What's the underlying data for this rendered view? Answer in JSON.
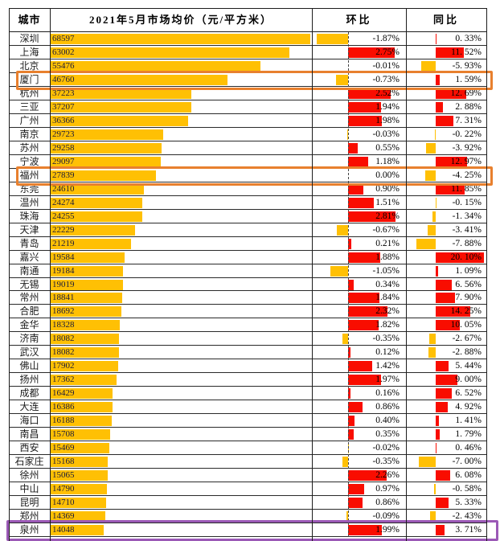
{
  "header": {
    "col_city": "城市",
    "col_price": "2021年5月市场均价（元/平方米）",
    "col_mom": "环比",
    "col_yoy": "同比"
  },
  "palette": {
    "bar_gold": "#FFC004",
    "bar_red": "#F90D00",
    "highlight_orange": "#E8802E",
    "highlight_purple": "#9B59B6",
    "grid": "#1c1c1c"
  },
  "chart_data": {
    "type": "table",
    "columns": [
      "城市",
      "2021年5月市场均价（元/平方米）",
      "环比",
      "同比"
    ],
    "bar_rules": {
      "price_bar_color": "gold",
      "positive_change_bar": "red, extends right of zero axis",
      "negative_change_bar": "gold, extends left of zero axis",
      "mom_zero_axis": "dashed vertical line in 环比 column"
    },
    "rows": [
      {
        "city": "深圳",
        "price": 68597,
        "mom": -1.87,
        "yoy": 0.33,
        "highlight": null
      },
      {
        "city": "上海",
        "price": 63002,
        "mom": 2.75,
        "yoy": 11.52,
        "highlight": null
      },
      {
        "city": "北京",
        "price": 55476,
        "mom": -0.01,
        "yoy": -5.93,
        "highlight": null
      },
      {
        "city": "厦门",
        "price": 46760,
        "mom": -0.73,
        "yoy": 1.59,
        "highlight": "orange"
      },
      {
        "city": "杭州",
        "price": 37223,
        "mom": 2.52,
        "yoy": 12.69,
        "highlight": null
      },
      {
        "city": "三亚",
        "price": 37207,
        "mom": 1.94,
        "yoy": 2.88,
        "highlight": null
      },
      {
        "city": "广州",
        "price": 36366,
        "mom": 1.98,
        "yoy": 7.31,
        "highlight": null
      },
      {
        "city": "南京",
        "price": 29723,
        "mom": -0.03,
        "yoy": -0.22,
        "highlight": null
      },
      {
        "city": "苏州",
        "price": 29258,
        "mom": 0.55,
        "yoy": -3.92,
        "highlight": null
      },
      {
        "city": "宁波",
        "price": 29097,
        "mom": 1.18,
        "yoy": 12.97,
        "highlight": null
      },
      {
        "city": "福州",
        "price": 27839,
        "mom": 0.0,
        "yoy": -4.25,
        "highlight": "orange"
      },
      {
        "city": "东莞",
        "price": 24610,
        "mom": 0.9,
        "yoy": 11.85,
        "highlight": null
      },
      {
        "city": "温州",
        "price": 24274,
        "mom": 1.51,
        "yoy": -0.15,
        "highlight": null
      },
      {
        "city": "珠海",
        "price": 24255,
        "mom": 2.81,
        "yoy": -1.34,
        "highlight": null
      },
      {
        "city": "天津",
        "price": 22229,
        "mom": -0.67,
        "yoy": -3.41,
        "highlight": null
      },
      {
        "city": "青岛",
        "price": 21219,
        "mom": 0.21,
        "yoy": -7.88,
        "highlight": null
      },
      {
        "city": "嘉兴",
        "price": 19584,
        "mom": 1.88,
        "yoy": 20.1,
        "highlight": null
      },
      {
        "city": "南通",
        "price": 19184,
        "mom": -1.05,
        "yoy": 1.09,
        "highlight": null
      },
      {
        "city": "无锡",
        "price": 19019,
        "mom": 0.34,
        "yoy": 6.56,
        "highlight": null
      },
      {
        "city": "常州",
        "price": 18841,
        "mom": 1.84,
        "yoy": 7.9,
        "highlight": null
      },
      {
        "city": "合肥",
        "price": 18692,
        "mom": 2.32,
        "yoy": 14.25,
        "highlight": null
      },
      {
        "city": "金华",
        "price": 18328,
        "mom": 1.82,
        "yoy": 10.05,
        "highlight": null
      },
      {
        "city": "济南",
        "price": 18082,
        "mom": -0.35,
        "yoy": -2.67,
        "highlight": null
      },
      {
        "city": "武汉",
        "price": 18082,
        "mom": 0.12,
        "yoy": -2.88,
        "highlight": null
      },
      {
        "city": "佛山",
        "price": 17902,
        "mom": 1.42,
        "yoy": 5.44,
        "highlight": null
      },
      {
        "city": "扬州",
        "price": 17362,
        "mom": 1.97,
        "yoy": 9.0,
        "highlight": null
      },
      {
        "city": "成都",
        "price": 16429,
        "mom": 0.16,
        "yoy": 6.52,
        "highlight": null
      },
      {
        "city": "大连",
        "price": 16386,
        "mom": 0.86,
        "yoy": 4.92,
        "highlight": null
      },
      {
        "city": "海口",
        "price": 16188,
        "mom": 0.4,
        "yoy": 1.41,
        "highlight": null
      },
      {
        "city": "南昌",
        "price": 15708,
        "mom": 0.35,
        "yoy": 1.79,
        "highlight": null
      },
      {
        "city": "西安",
        "price": 15469,
        "mom": -0.02,
        "yoy": 0.46,
        "highlight": null
      },
      {
        "city": "石家庄",
        "price": 15168,
        "mom": -0.35,
        "yoy": -7.0,
        "highlight": null
      },
      {
        "city": "徐州",
        "price": 15065,
        "mom": 2.26,
        "yoy": 6.08,
        "highlight": null
      },
      {
        "city": "中山",
        "price": 14790,
        "mom": 0.97,
        "yoy": -0.58,
        "highlight": null
      },
      {
        "city": "昆明",
        "price": 14710,
        "mom": 0.86,
        "yoy": 5.33,
        "highlight": null
      },
      {
        "city": "郑州",
        "price": 14369,
        "mom": -0.09,
        "yoy": -2.43,
        "highlight": null
      },
      {
        "city": "泉州",
        "price": 14048,
        "mom": 1.99,
        "yoy": 3.71,
        "highlight": "purple"
      }
    ],
    "partial_next_row_visible": true
  }
}
